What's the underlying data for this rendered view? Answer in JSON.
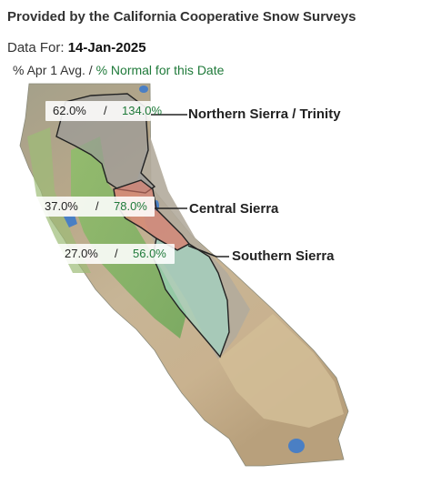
{
  "header": {
    "title": "Provided by the California Cooperative Snow Surveys"
  },
  "data_for": {
    "label": "Data For:",
    "date": "14-Jan-2025"
  },
  "legend": {
    "avg_label": "% Apr 1 Avg. /",
    "normal_label": "% Normal for this Date"
  },
  "regions": [
    {
      "name": "Northern Sierra / Trinity",
      "pct_apr1": "62.0%",
      "separator": "/",
      "pct_normal": "134.0%",
      "color": "#9a9a9a"
    },
    {
      "name": "Central Sierra",
      "pct_apr1": "37.0%",
      "separator": "/",
      "pct_normal": "78.0%",
      "color": "#e07a6a"
    },
    {
      "name": "Southern Sierra",
      "pct_apr1": "27.0%",
      "separator": "/",
      "pct_normal": "56.0%",
      "color": "#9fd8c8"
    }
  ]
}
